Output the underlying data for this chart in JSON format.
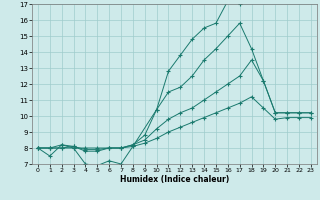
{
  "xlabel": "Humidex (Indice chaleur)",
  "background_color": "#ceeaea",
  "grid_color": "#a0cccc",
  "line_color": "#1a7a6e",
  "xlim": [
    -0.5,
    23.5
  ],
  "ylim": [
    7,
    17
  ],
  "xticks": [
    0,
    1,
    2,
    3,
    4,
    5,
    6,
    7,
    8,
    9,
    10,
    11,
    12,
    13,
    14,
    15,
    16,
    17,
    18,
    19,
    20,
    21,
    22,
    23
  ],
  "yticks": [
    7,
    8,
    9,
    10,
    11,
    12,
    13,
    14,
    15,
    16,
    17
  ],
  "series": [
    {
      "x": [
        0,
        1,
        2,
        3,
        4,
        5,
        6,
        7,
        8,
        9,
        10,
        11,
        12,
        13,
        14,
        15,
        16,
        17,
        18,
        19,
        20,
        21,
        22,
        23
      ],
      "y": [
        8.0,
        7.5,
        8.2,
        8.0,
        7.0,
        6.9,
        7.2,
        7.0,
        8.1,
        null,
        10.4,
        12.8,
        13.8,
        14.8,
        15.5,
        15.8,
        17.2,
        17.0,
        17.2,
        null,
        null,
        null,
        null,
        null
      ]
    },
    {
      "x": [
        0,
        1,
        2,
        3,
        4,
        5,
        6,
        7,
        8,
        9,
        10,
        11,
        12,
        13,
        14,
        15,
        16,
        17,
        18,
        19,
        20,
        21,
        22,
        23
      ],
      "y": [
        8.0,
        8.0,
        8.2,
        8.1,
        7.8,
        7.8,
        8.0,
        8.0,
        8.2,
        8.8,
        10.4,
        11.5,
        11.8,
        12.5,
        13.5,
        14.2,
        15.0,
        15.8,
        14.2,
        12.2,
        10.2,
        10.2,
        10.2,
        10.2
      ]
    },
    {
      "x": [
        0,
        1,
        2,
        3,
        4,
        5,
        6,
        7,
        8,
        9,
        10,
        11,
        12,
        13,
        14,
        15,
        16,
        17,
        18,
        19,
        20,
        21,
        22,
        23
      ],
      "y": [
        8.0,
        8.0,
        8.0,
        8.1,
        7.9,
        7.9,
        8.0,
        8.0,
        8.2,
        8.5,
        9.2,
        9.8,
        10.2,
        10.5,
        11.0,
        11.5,
        12.0,
        12.5,
        13.5,
        12.2,
        10.2,
        10.2,
        10.2,
        10.2
      ]
    },
    {
      "x": [
        0,
        1,
        2,
        3,
        4,
        5,
        6,
        7,
        8,
        9,
        10,
        11,
        12,
        13,
        14,
        15,
        16,
        17,
        18,
        19,
        20,
        21,
        22,
        23
      ],
      "y": [
        8.0,
        8.0,
        8.0,
        8.0,
        8.0,
        8.0,
        8.0,
        8.0,
        8.1,
        8.3,
        8.6,
        9.0,
        9.3,
        9.6,
        9.9,
        10.2,
        10.5,
        10.8,
        11.2,
        10.5,
        9.8,
        9.9,
        9.9,
        9.9
      ]
    }
  ]
}
